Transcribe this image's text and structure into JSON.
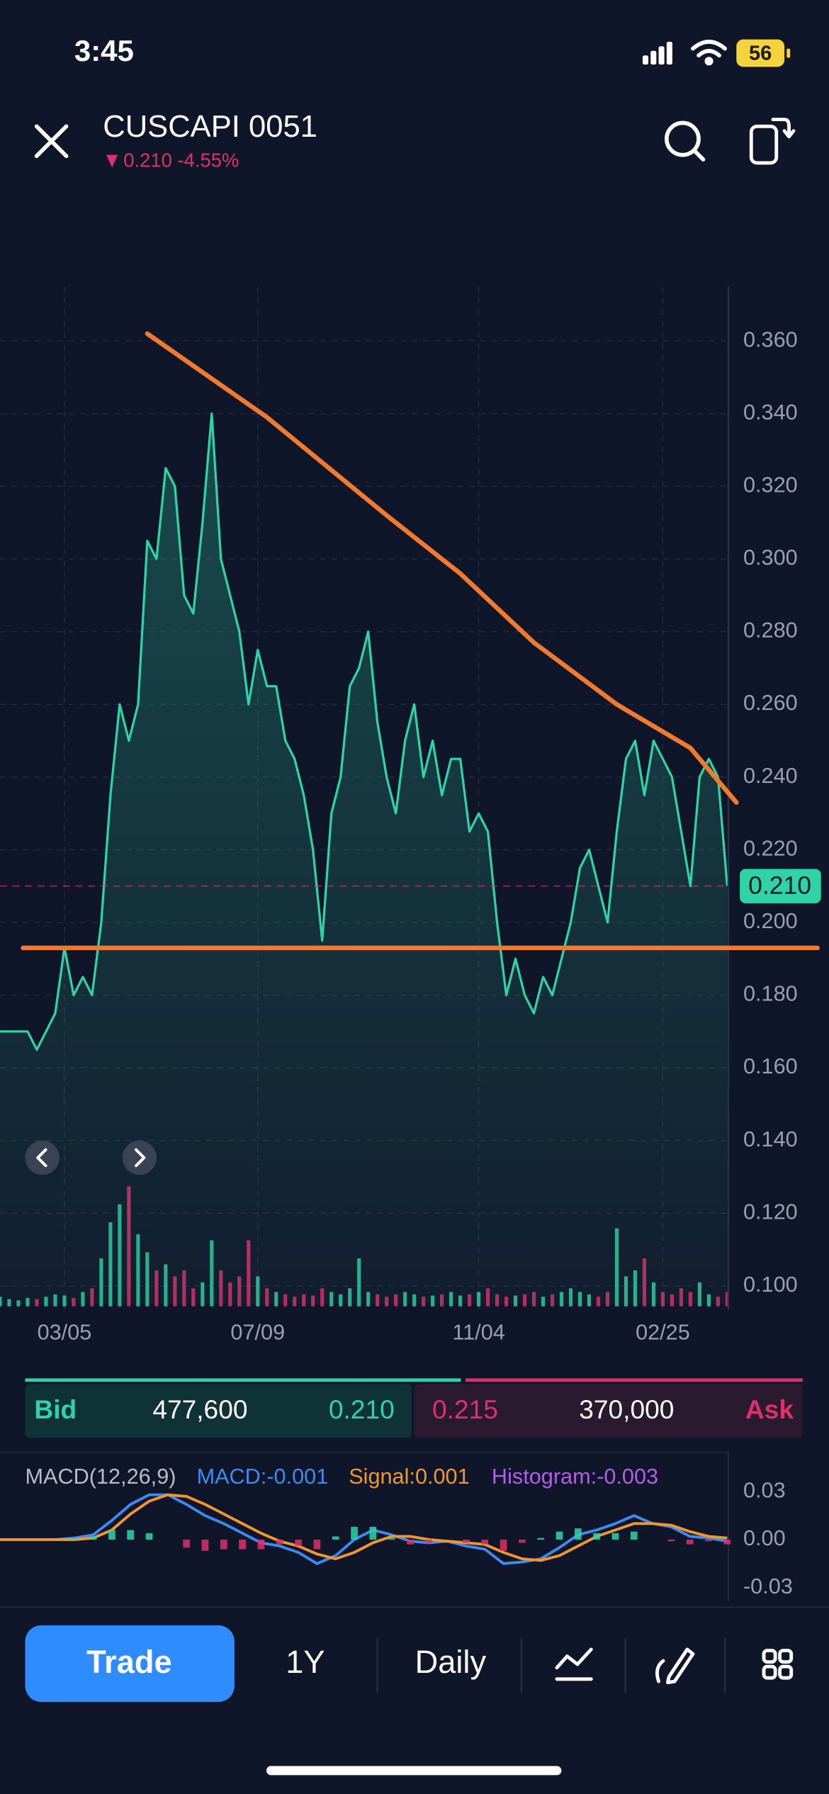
{
  "status_bar": {
    "time": "3:45",
    "battery": "56"
  },
  "header": {
    "title": "CUSCAPI 0051",
    "change": "0.210 -4.55%"
  },
  "chart_data": [
    {
      "type": "area",
      "color": "#2fd3a6",
      "categories": [
        null,
        null,
        null,
        null,
        null,
        null,
        null,
        "03/05",
        null,
        null,
        null,
        null,
        null,
        null,
        null,
        null,
        null,
        null,
        null,
        null,
        null,
        null,
        null,
        null,
        null,
        null,
        null,
        null,
        "07/09",
        null,
        null,
        null,
        null,
        null,
        null,
        null,
        null,
        null,
        null,
        null,
        null,
        null,
        null,
        null,
        null,
        null,
        null,
        null,
        null,
        null,
        null,
        null,
        "11/04",
        null,
        null,
        null,
        null,
        null,
        null,
        null,
        null,
        null,
        null,
        null,
        null,
        null,
        null,
        null,
        null,
        null,
        null,
        null,
        "02/25",
        null,
        null,
        null,
        null,
        null,
        null,
        null
      ],
      "values": [
        0.17,
        0.17,
        0.17,
        0.17,
        0.165,
        0.17,
        0.175,
        0.193,
        0.18,
        0.185,
        0.18,
        0.2,
        0.235,
        0.26,
        0.25,
        0.26,
        0.305,
        0.3,
        0.325,
        0.32,
        0.29,
        0.285,
        0.31,
        0.34,
        0.3,
        0.29,
        0.28,
        0.26,
        0.275,
        0.265,
        0.265,
        0.25,
        0.245,
        0.235,
        0.22,
        0.195,
        0.23,
        0.24,
        0.265,
        0.27,
        0.28,
        0.255,
        0.24,
        0.23,
        0.25,
        0.26,
        0.24,
        0.25,
        0.235,
        0.245,
        0.245,
        0.225,
        0.23,
        0.225,
        0.2,
        0.18,
        0.19,
        0.18,
        0.175,
        0.185,
        0.18,
        0.19,
        0.2,
        0.215,
        0.22,
        0.21,
        0.2,
        0.225,
        0.245,
        0.25,
        0.235,
        0.25,
        0.245,
        0.24,
        0.225,
        0.21,
        0.24,
        0.245,
        0.24,
        0.21
      ],
      "ylim": [
        0.095,
        0.375
      ],
      "yticks": [
        {
          "value": 0.36,
          "label": "0.360"
        },
        {
          "value": 0.34,
          "label": "0.340"
        },
        {
          "value": 0.32,
          "label": "0.320"
        },
        {
          "value": 0.3,
          "label": "0.300"
        },
        {
          "value": 0.28,
          "label": "0.280"
        },
        {
          "value": 0.26,
          "label": "0.260"
        },
        {
          "value": 0.24,
          "label": "0.240"
        },
        {
          "value": 0.22,
          "label": "0.220"
        },
        {
          "value": 0.2,
          "label": "0.200"
        },
        {
          "value": 0.18,
          "label": "0.180"
        },
        {
          "value": 0.16,
          "label": "0.160"
        },
        {
          "value": 0.14,
          "label": "0.140"
        },
        {
          "value": 0.12,
          "label": "0.120"
        },
        {
          "value": 0.1,
          "label": "0.100"
        }
      ],
      "grid": true,
      "last_price": {
        "value": 0.21,
        "label": "0.210"
      },
      "last_price_color": "#e0306a",
      "trendlines": [
        {
          "color": "#f07a30",
          "x": [
            16,
            29,
            42,
            50,
            58,
            67,
            75,
            80
          ],
          "values": [
            0.362,
            0.339,
            0.312,
            0.296,
            0.277,
            0.26,
            0.248,
            0.233
          ]
        },
        {
          "color": "#f07a30",
          "x": [
            2.5,
            88.8
          ],
          "values": [
            0.193,
            0.193
          ]
        }
      ],
      "volume": {
        "values": [
          8,
          6,
          5,
          7,
          6,
          8,
          10,
          9,
          7,
          12,
          15,
          40,
          70,
          85,
          100,
          60,
          45,
          30,
          35,
          25,
          30,
          15,
          20,
          55,
          30,
          20,
          25,
          55,
          25,
          15,
          12,
          10,
          8,
          10,
          9,
          15,
          12,
          10,
          15,
          40,
          12,
          10,
          8,
          10,
          12,
          10,
          8,
          9,
          10,
          12,
          9,
          10,
          12,
          15,
          10,
          8,
          9,
          10,
          12,
          8,
          10,
          12,
          15,
          12,
          10,
          8,
          12,
          65,
          25,
          30,
          40,
          20,
          12,
          10,
          15,
          12,
          20,
          10,
          8,
          12
        ],
        "ylim": [
          0,
          100
        ],
        "up_color": "#2fd3a6",
        "down_color": "#e0306a"
      }
    },
    {
      "type": "line",
      "title": "MACD(12,26,9)",
      "series": [
        {
          "name": "MACD:-0.001",
          "color": "#3d8bf0",
          "values": [
            0,
            0,
            0,
            0,
            0.001,
            0.003,
            0.012,
            0.022,
            0.028,
            0.028,
            0.022,
            0.015,
            0.01,
            0.004,
            -0.002,
            -0.004,
            -0.008,
            -0.015,
            -0.01,
            0.0,
            0.006,
            0.003,
            -0.001,
            -0.002,
            -0.001,
            -0.004,
            -0.006,
            -0.015,
            -0.014,
            -0.012,
            -0.005,
            0.003,
            0.006,
            0.01,
            0.015,
            0.01,
            0.008,
            0.002,
            0.001,
            -0.001
          ]
        },
        {
          "name": "Signal:0.001",
          "color": "#f0982e",
          "values": [
            0,
            0,
            0,
            0,
            0,
            0.001,
            0.006,
            0.016,
            0.024,
            0.028,
            0.027,
            0.022,
            0.016,
            0.01,
            0.004,
            -0.001,
            -0.004,
            -0.009,
            -0.012,
            -0.008,
            -0.002,
            0.002,
            0.002,
            0.0,
            -0.001,
            -0.002,
            -0.003,
            -0.008,
            -0.012,
            -0.013,
            -0.01,
            -0.004,
            0.002,
            0.006,
            0.01,
            0.01,
            0.009,
            0.005,
            0.002,
            0.001
          ]
        },
        {
          "name": "Histogram:-0.003",
          "type": "bar",
          "color": "#b35ee6",
          "up_color": "#2fd3a6",
          "down_color": "#e0306a",
          "values": [
            0,
            0,
            0,
            0,
            0.001,
            0.002,
            0.006,
            0.006,
            0.004,
            0,
            -0.005,
            -0.007,
            -0.006,
            -0.006,
            -0.006,
            -0.003,
            -0.004,
            -0.006,
            0.002,
            0.008,
            0.008,
            0.001,
            -0.003,
            -0.002,
            0,
            -0.002,
            -0.003,
            -0.007,
            -0.002,
            0.001,
            0.005,
            0.007,
            0.004,
            0.004,
            0.005,
            0,
            -0.001,
            -0.003,
            -0.001,
            -0.003
          ]
        }
      ],
      "ylim": [
        -0.04,
        0.04
      ],
      "yticks": [
        0.03,
        {
          "value": 0,
          "label": "0.00"
        },
        -0.03
      ]
    }
  ],
  "order_book": {
    "bid_label": "Bid",
    "bid_size": "477,600",
    "bid_price": "0.210",
    "ask_price": "0.215",
    "ask_size": "370,000",
    "ask_label": "Ask"
  },
  "toolbar": {
    "trade": "Trade",
    "range": "1Y",
    "interval": "Daily"
  }
}
